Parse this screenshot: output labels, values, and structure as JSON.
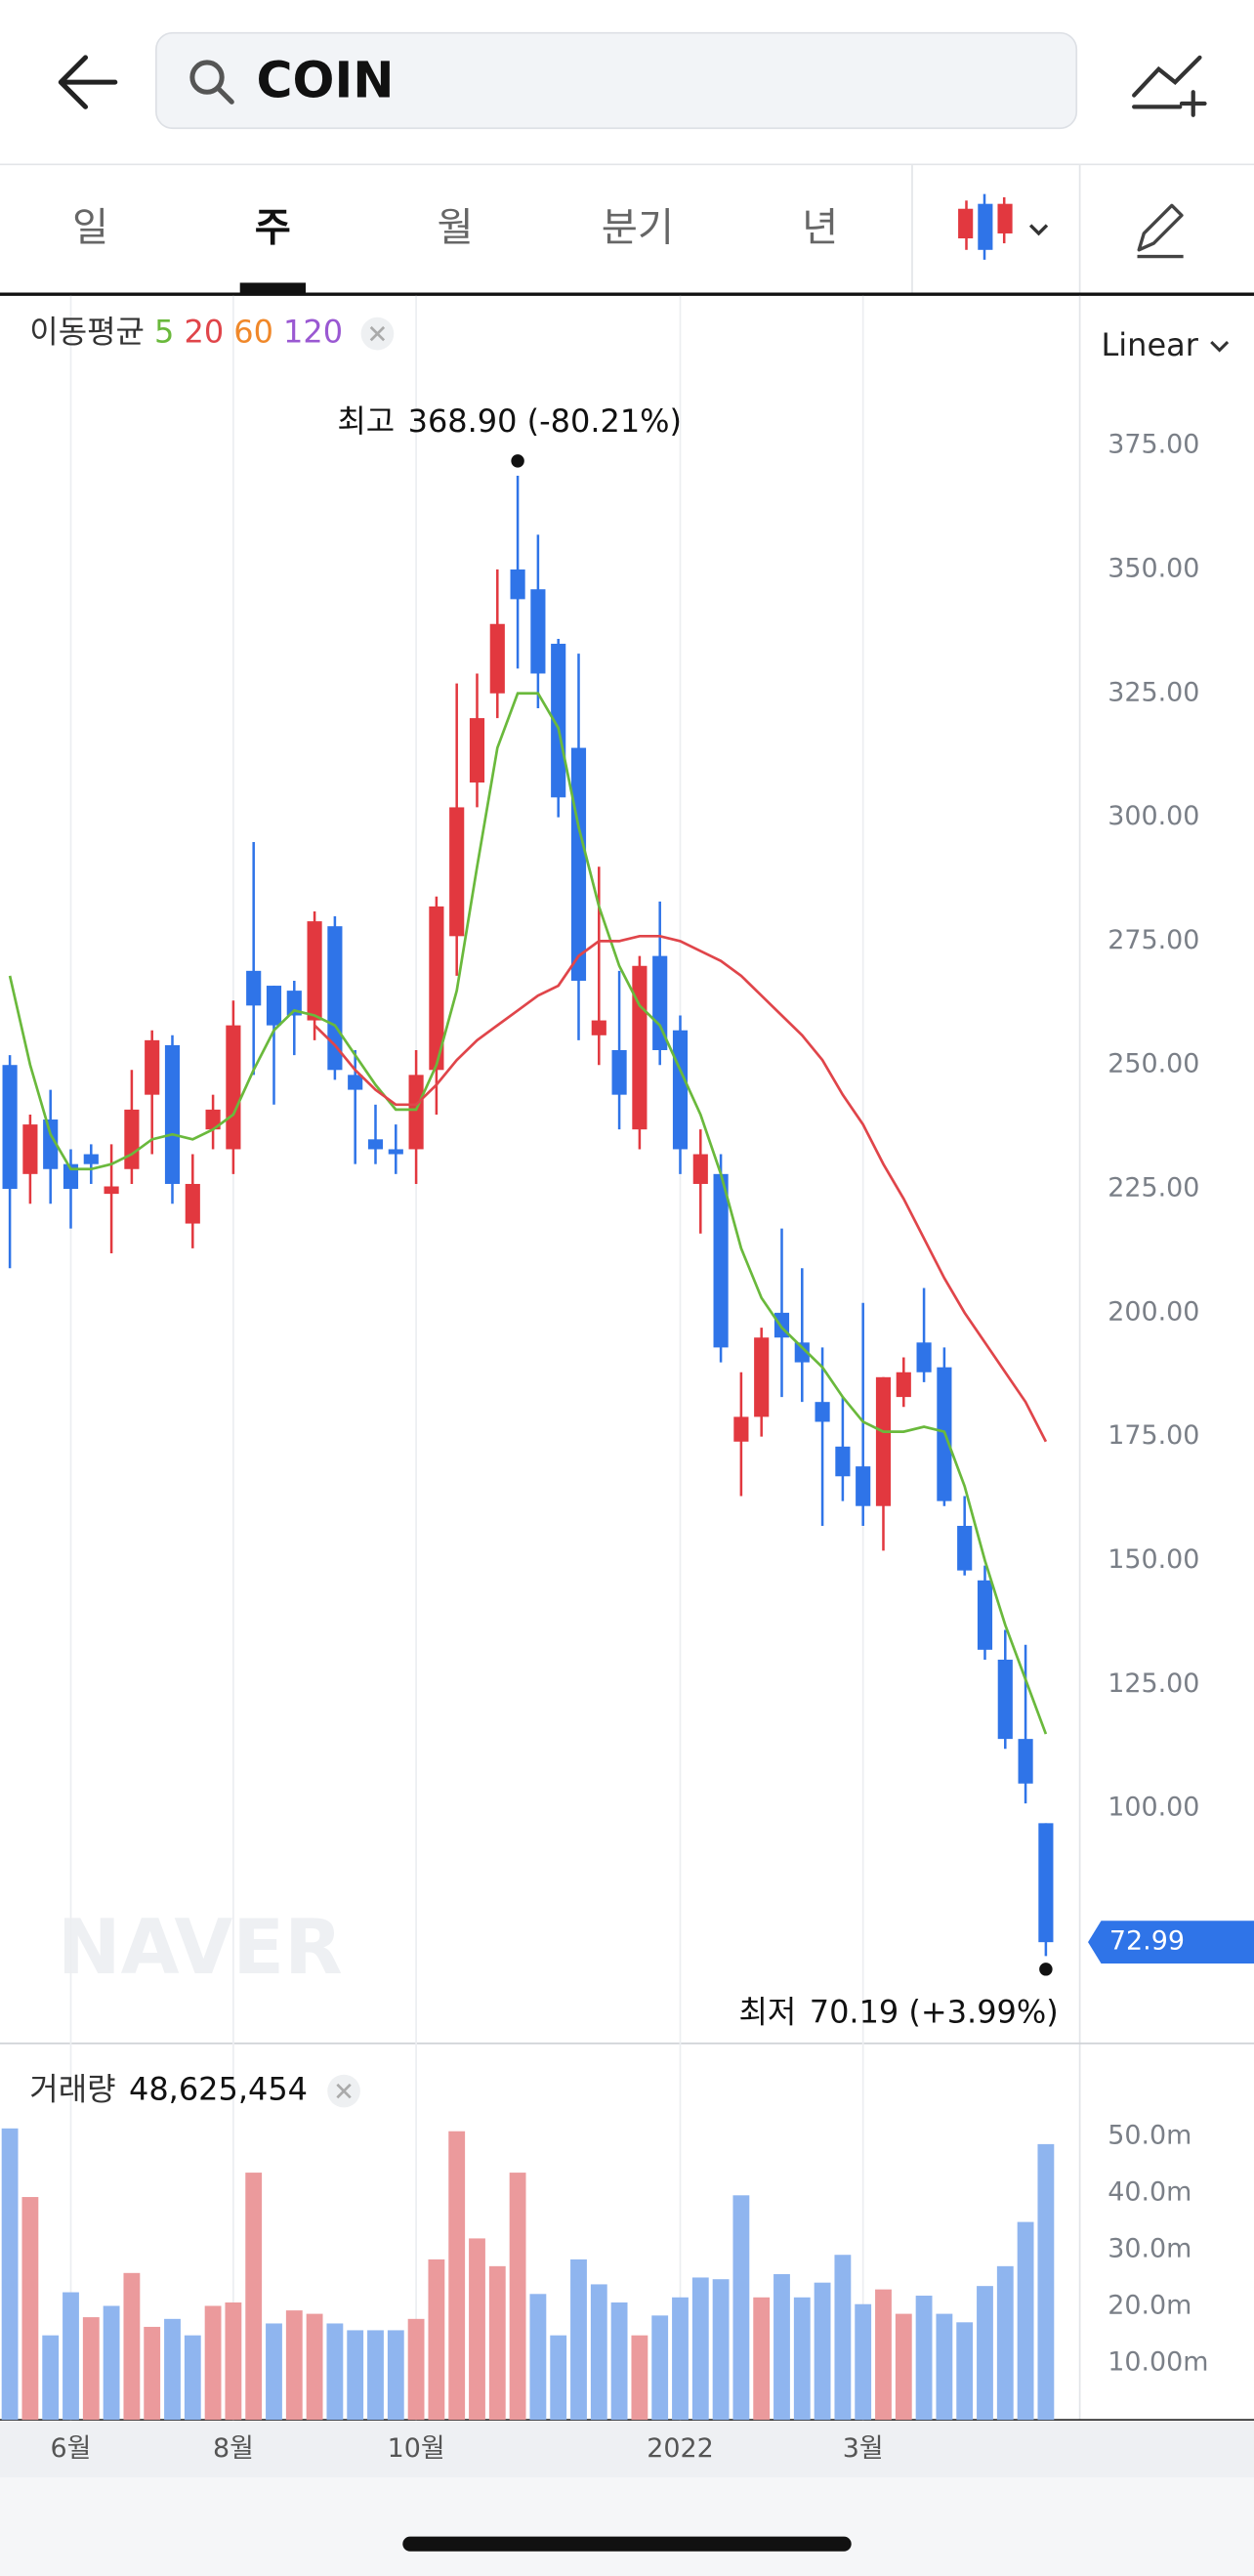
{
  "header": {
    "search": "COIN"
  },
  "tabs": [
    "일",
    "주",
    "월",
    "분기",
    "년"
  ],
  "active_tab": 1,
  "scale_mode": "Linear",
  "chart_data": [
    {
      "type": "candlestick",
      "categories": [
        null,
        null,
        null,
        "6월",
        null,
        null,
        null,
        null,
        null,
        null,
        null,
        "8월",
        null,
        null,
        null,
        null,
        null,
        null,
        null,
        null,
        "10월",
        null,
        null,
        null,
        null,
        null,
        null,
        null,
        null,
        null,
        null,
        null,
        null,
        "2022",
        null,
        null,
        null,
        null,
        null,
        null,
        null,
        null,
        "3월",
        null,
        null,
        null,
        null,
        null,
        null,
        null,
        null,
        null
      ],
      "candles": {
        "open": [
          250,
          228,
          239,
          230,
          232,
          224,
          229,
          244,
          254,
          218,
          237,
          233,
          269,
          266,
          265,
          259,
          278,
          248,
          235,
          233,
          233,
          249,
          276,
          307,
          325,
          350,
          346,
          335,
          314,
          256,
          253,
          237,
          272,
          257,
          226,
          228,
          174,
          179,
          200,
          194,
          182,
          173,
          169,
          161,
          183,
          194,
          189,
          157,
          146,
          130,
          114,
          97
        ],
        "high": [
          252,
          240,
          245,
          233,
          234,
          234,
          249,
          257,
          256,
          232,
          244,
          263,
          295,
          266,
          267,
          281,
          280,
          253,
          242,
          238,
          253,
          284,
          327,
          329,
          350,
          368.9,
          357,
          336,
          333,
          290,
          269,
          272,
          283,
          260,
          237,
          232,
          188,
          197,
          217,
          209,
          193,
          183,
          202,
          187,
          191,
          205,
          193,
          163,
          149,
          136,
          133,
          97
        ],
        "low": [
          209,
          222,
          222,
          217,
          226,
          212,
          226,
          232,
          222,
          213,
          233,
          228,
          248,
          242,
          252,
          255,
          247,
          230,
          230,
          228,
          226,
          240,
          268,
          302,
          320,
          330,
          322,
          300,
          255,
          250,
          237,
          233,
          250,
          228,
          216,
          190,
          163,
          175,
          183,
          182,
          157,
          162,
          157,
          152,
          181,
          186,
          161,
          147,
          130,
          112,
          101,
          70.19
        ],
        "close": [
          225,
          238,
          229,
          225,
          230,
          225.5,
          241,
          255,
          226,
          226,
          241,
          258,
          262,
          258,
          260,
          279,
          249,
          245,
          233,
          232,
          248,
          282,
          302,
          320,
          339,
          344,
          329,
          304,
          267,
          259,
          244,
          270,
          253,
          233,
          232,
          193,
          179,
          195,
          195,
          190,
          178,
          167,
          161,
          187,
          188,
          188,
          162,
          148,
          132,
          114,
          105,
          72.99
        ]
      },
      "up_color": "#e2383f",
      "down_color": "#2f74e8",
      "ma_label": "이동평균",
      "series": [
        {
          "name": "5",
          "color": "#6ab93c",
          "values": [
            268,
            250,
            236,
            229,
            229,
            230,
            232,
            235,
            236,
            235,
            237,
            240,
            249,
            257,
            261,
            260,
            258,
            252,
            246,
            241,
            241,
            250,
            265,
            290,
            314,
            325,
            325,
            318,
            298,
            282,
            270,
            262,
            258,
            249,
            240,
            228,
            213,
            203,
            197,
            193,
            189,
            183,
            178,
            176,
            176,
            177,
            176,
            165,
            150,
            137,
            126,
            115
          ]
        },
        {
          "name": "20",
          "color": "#e0454a",
          "values": [
            null,
            null,
            null,
            null,
            null,
            null,
            null,
            null,
            null,
            null,
            null,
            null,
            null,
            null,
            null,
            258,
            254,
            249,
            245,
            242,
            242,
            246,
            251,
            255,
            258,
            261,
            264,
            266,
            272,
            275,
            275,
            276,
            276,
            275,
            273,
            271,
            268,
            264,
            260,
            256,
            251,
            244,
            238,
            230,
            223,
            215,
            207,
            200,
            194,
            188,
            182,
            174
          ]
        },
        {
          "name": "60",
          "color": "#f0882a",
          "values": [
            null,
            null,
            null,
            null,
            null,
            null,
            null,
            null,
            null,
            null,
            null,
            null,
            null,
            null,
            null,
            null,
            null,
            null,
            null,
            null,
            null,
            null,
            null,
            null,
            null,
            null,
            null,
            null,
            null,
            null,
            null,
            null,
            null,
            null,
            null,
            null,
            null,
            null,
            null,
            null,
            null,
            null,
            null,
            null,
            null,
            null,
            null,
            null,
            null,
            null,
            null,
            null
          ]
        },
        {
          "name": "120",
          "color": "#9a58d2",
          "values": [
            null,
            null,
            null,
            null,
            null,
            null,
            null,
            null,
            null,
            null,
            null,
            null,
            null,
            null,
            null,
            null,
            null,
            null,
            null,
            null,
            null,
            null,
            null,
            null,
            null,
            null,
            null,
            null,
            null,
            null,
            null,
            null,
            null,
            null,
            null,
            null,
            null,
            null,
            null,
            null,
            null,
            null,
            null,
            null,
            null,
            null,
            null,
            null,
            null,
            null,
            null,
            null
          ]
        }
      ],
      "ylim": [
        52.9,
        405.2
      ],
      "yticks": [
        {
          "value": 100,
          "label": "100.00"
        },
        {
          "value": 125,
          "label": "125.00"
        },
        {
          "value": 150,
          "label": "150.00"
        },
        {
          "value": 175,
          "label": "175.00"
        },
        {
          "value": 200,
          "label": "200.00"
        },
        {
          "value": 225,
          "label": "225.00"
        },
        {
          "value": 250,
          "label": "250.00"
        },
        {
          "value": 275,
          "label": "275.00"
        },
        {
          "value": 300,
          "label": "300.00"
        },
        {
          "value": 325,
          "label": "325.00"
        },
        {
          "value": 350,
          "label": "350.00"
        },
        {
          "value": 375,
          "label": "375.00"
        }
      ],
      "grid": "x",
      "annotations": {
        "high": {
          "label": "최고",
          "text": "368.90 (-80.21%)"
        },
        "low": {
          "label": "최저",
          "text": "70.19 (+3.99%)"
        }
      },
      "watermark": "NAVER"
    },
    {
      "type": "bar",
      "title": "거래량",
      "value_text": "48,625,454",
      "values": [
        51.4,
        39.3,
        14.9,
        22.5,
        18.1,
        20.1,
        25.9,
        16.4,
        17.8,
        14.9,
        20.1,
        20.7,
        43.6,
        17.0,
        19.3,
        18.7,
        17.0,
        15.8,
        15.8,
        15.8,
        17.8,
        28.3,
        50.9,
        32.0,
        27.1,
        43.6,
        22.2,
        14.9,
        28.3,
        23.9,
        20.7,
        14.9,
        18.4,
        21.6,
        25.1,
        24.8,
        39.6,
        21.6,
        25.7,
        21.6,
        24.2,
        29.1,
        20.4,
        23.0,
        18.7,
        21.9,
        18.7,
        17.2,
        23.6,
        27.1,
        34.9,
        48.63
      ],
      "up_color": "#eb9a9c",
      "down_color": "#8fb5ef",
      "ylim": [
        0,
        66.4
      ],
      "yticks": [
        {
          "value": 10,
          "label": "10.00m"
        },
        {
          "value": 20,
          "label": "20.0m"
        },
        {
          "value": 30,
          "label": "30.0m"
        },
        {
          "value": 40,
          "label": "40.0m"
        },
        {
          "value": 50,
          "label": "50.0m"
        }
      ]
    }
  ]
}
